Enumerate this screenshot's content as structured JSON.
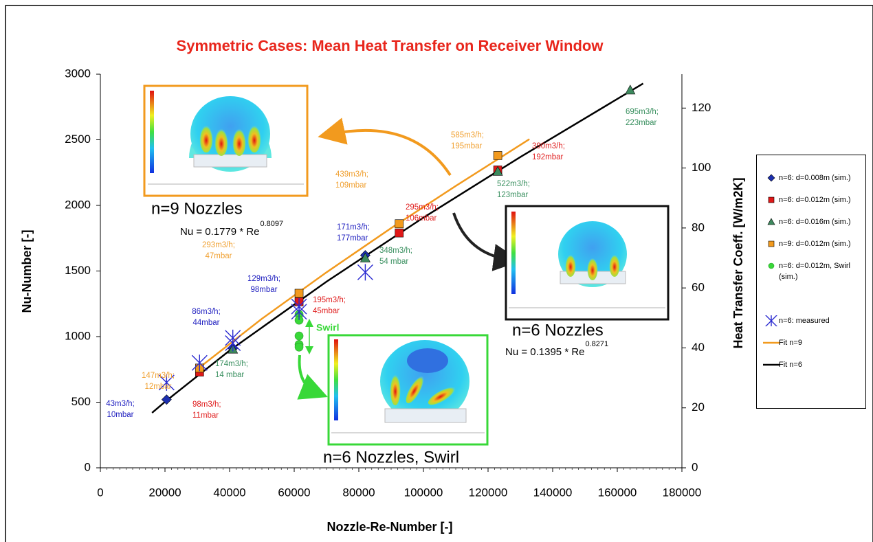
{
  "chart_data": {
    "type": "scatter",
    "title": "Symmetric Cases: Mean Heat Transfer on Receiver Window",
    "title_color": "#e8261c",
    "x_label": "Nozzle-Re-Number [-]",
    "y_label": "Nu-Number [-]",
    "y2_label": "Heat Transfer Coeff. [W/m2K]",
    "xlim": [
      0,
      180000
    ],
    "xticks": [
      0,
      20000,
      40000,
      60000,
      80000,
      100000,
      120000,
      140000,
      160000,
      180000
    ],
    "ylim": [
      0,
      3000
    ],
    "yticks": [
      0,
      500,
      1000,
      1500,
      2000,
      2500,
      3000
    ],
    "y2lim": [
      0,
      131.3
    ],
    "y2ticks": [
      0,
      20,
      40,
      60,
      80,
      100,
      120
    ],
    "grid": false,
    "legend": "right",
    "series": [
      {
        "name": "n=6: d=0.008m (sim.)",
        "marker": "diamond",
        "color": "#1c2fb0",
        "x": [
          20500,
          41000,
          82000
        ],
        "values": [
          520,
          910,
          1620
        ]
      },
      {
        "name": "n=6: d=0.012m (sim.)",
        "marker": "square",
        "color": "#e01818",
        "x": [
          30700,
          61500,
          92500,
          123000
        ],
        "values": [
          730,
          1265,
          1790,
          2270
        ]
      },
      {
        "name": "n=6: d=0.016m (sim.)",
        "marker": "triangle",
        "color": "#3d8a5e",
        "x": [
          41000,
          82000,
          123000,
          164000
        ],
        "values": [
          905,
          1600,
          2260,
          2880
        ]
      },
      {
        "name": "n=9: d=0.012m (sim.)",
        "marker": "square",
        "color": "#f29a1e",
        "x": [
          30700,
          61500,
          92500,
          123000
        ],
        "values": [
          760,
          1330,
          1860,
          2380
        ]
      },
      {
        "name": "n=6: d=0.012m, Swirl (sim.)",
        "marker": "circle",
        "color": "#38d838",
        "x": [
          61500,
          61500,
          61500,
          61500,
          61500
        ],
        "values": [
          1170,
          1125,
          1005,
          940,
          920
        ]
      },
      {
        "name": "n=6: measured",
        "marker": "star",
        "color": "#2a2ad0",
        "x": [
          20500,
          30700,
          41000,
          41000,
          61500,
          61500,
          82000
        ],
        "values": [
          650,
          800,
          990,
          950,
          1230,
          1190,
          1490
        ]
      },
      {
        "name": "Fit n=9",
        "marker": "line",
        "color": "#f29a1e",
        "x": [
          30600,
          50000,
          70000,
          90000,
          110000,
          132800
        ],
        "values": [
          763,
          1136,
          1490,
          1827,
          2148,
          2505
        ]
      },
      {
        "name": "Fit n=6",
        "marker": "line",
        "color": "#000000",
        "x": [
          16000,
          20000,
          40000,
          70000,
          100000,
          130000,
          168000
        ],
        "values": [
          419,
          503,
          894,
          1419,
          1907,
          2369,
          2929
        ]
      }
    ],
    "annotations": [
      {
        "lines": [
          "43m3/h;",
          "10mbar"
        ],
        "color": "#2020c0"
      },
      {
        "lines": [
          "147m3/h;",
          "12mbar"
        ],
        "color": "#f0a030"
      },
      {
        "lines": [
          "86m3/h;",
          "44mbar"
        ],
        "color": "#2020c0"
      },
      {
        "lines": [
          "98m3/h;",
          "11mbar"
        ],
        "color": "#e02020"
      },
      {
        "lines": [
          "174m3/h;",
          "14 mbar"
        ],
        "color": "#3a9060"
      },
      {
        "lines": [
          "129m3/h;",
          "98mbar"
        ],
        "color": "#2020c0"
      },
      {
        "lines": [
          "293m3/h;",
          "47mbar"
        ],
        "color": "#f0a030"
      },
      {
        "lines": [
          "195m3/h;",
          "45mbar"
        ],
        "color": "#e02020"
      },
      {
        "lines": [
          "171m3/h;",
          "177mbar"
        ],
        "color": "#2020c0"
      },
      {
        "lines": [
          "348m3/h;",
          "54 mbar"
        ],
        "color": "#3a9060"
      },
      {
        "lines": [
          "295m3/h;",
          "106mbar"
        ],
        "color": "#e02020"
      },
      {
        "lines": [
          "439m3/h;",
          "109mbar"
        ],
        "color": "#f0a030"
      },
      {
        "lines": [
          "585m3/h;",
          "195mbar"
        ],
        "color": "#f0a030"
      },
      {
        "lines": [
          "390m3/h;",
          "192mbar"
        ],
        "color": "#e02020"
      },
      {
        "lines": [
          "522m3/h;",
          "123mbar"
        ],
        "color": "#3a9060"
      },
      {
        "lines": [
          "695m3/h;",
          "223mbar"
        ],
        "color": "#3a9060"
      }
    ],
    "swirl_label": "Swirl",
    "insets": [
      {
        "caption": "n=9 Nozzles",
        "equation": {
          "text": "Nu = 0.1779 * Re",
          "exponent": "0.8097"
        }
      },
      {
        "caption": "n=6 Nozzles",
        "equation": {
          "text": "Nu = 0.1395 * Re",
          "exponent": "0.8271"
        }
      },
      {
        "caption": "n=6 Nozzles, Swirl"
      }
    ]
  }
}
